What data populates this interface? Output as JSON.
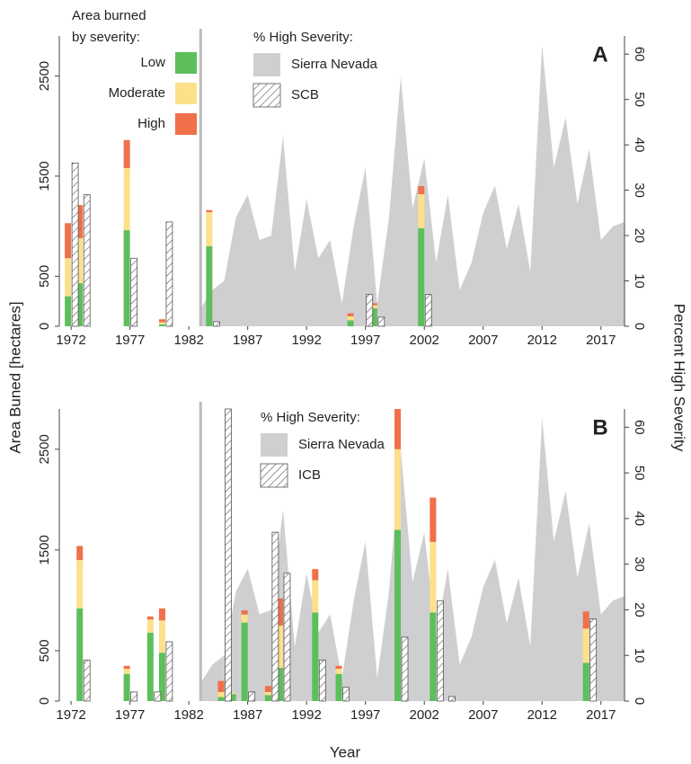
{
  "xlabel": "Year",
  "ylabel": "Area Buned [hectares]",
  "y2label": "Percent High Severity",
  "chart_data": [
    {
      "type": "bar",
      "label": "A",
      "xlim": [
        1971,
        2019
      ],
      "xticks": [
        1972,
        1977,
        1982,
        1987,
        1992,
        1997,
        2002,
        2007,
        2012,
        2017
      ],
      "ylim": [
        0,
        2900
      ],
      "yticks": [
        0,
        500,
        1500,
        2500
      ],
      "y2lim": [
        0,
        64
      ],
      "y2ticks": [
        0,
        10,
        20,
        30,
        40,
        50,
        60
      ],
      "legend_title": [
        "Area burned",
        "by severity:"
      ],
      "x": [
        1972,
        1973,
        1977,
        1980,
        1984,
        1996,
        1998,
        2002
      ],
      "series": [
        {
          "name": "Low",
          "color": "#5cbf5c",
          "values": [
            300,
            430,
            960,
            20,
            800,
            60,
            180,
            980
          ]
        },
        {
          "name": "Moderate",
          "color": "#fde08a",
          "values": [
            380,
            450,
            620,
            20,
            340,
            40,
            30,
            340
          ]
        },
        {
          "name": "High",
          "color": "#f07049",
          "values": [
            350,
            330,
            280,
            30,
            20,
            30,
            20,
            80
          ]
        }
      ],
      "pct_title": "% High Severity:",
      "area": {
        "name": "Sierra Nevada",
        "color": "#cfcfd1",
        "axis": "y2",
        "x": [
          1983,
          1984,
          1985,
          1986,
          1987,
          1988,
          1989,
          1990,
          1991,
          1992,
          1993,
          1994,
          1995,
          1996,
          1997,
          1998,
          1999,
          2000,
          2001,
          2002,
          2003,
          2004,
          2005,
          2006,
          2007,
          2008,
          2009,
          2010,
          2011,
          2012,
          2013,
          2014,
          2015,
          2016,
          2017,
          2018,
          2019
        ],
        "values": [
          4,
          8,
          10,
          24,
          29,
          19,
          20,
          42,
          12,
          28,
          15,
          19,
          5,
          22,
          35,
          5,
          24,
          55,
          26,
          37,
          14,
          29,
          8,
          14,
          25,
          31,
          17,
          27,
          12,
          62,
          35,
          46,
          27,
          39,
          19,
          22,
          23
        ]
      },
      "hatched": {
        "name": "SCB",
        "axis": "y2",
        "x": [
          1972,
          1973,
          1977,
          1980,
          1984,
          1997,
          1998,
          2002
        ],
        "values": [
          36,
          29,
          15,
          23,
          1,
          7,
          2,
          7
        ]
      }
    },
    {
      "type": "bar",
      "label": "B",
      "xlim": [
        1971,
        2019
      ],
      "xticks": [
        1972,
        1977,
        1982,
        1987,
        1992,
        1997,
        2002,
        2007,
        2012,
        2017
      ],
      "ylim": [
        0,
        2900
      ],
      "yticks": [
        0,
        500,
        1500,
        2500
      ],
      "y2lim": [
        0,
        64
      ],
      "y2ticks": [
        0,
        10,
        20,
        30,
        40,
        50,
        60
      ],
      "x": [
        1973,
        1977,
        1979,
        1980,
        1985,
        1986,
        1987,
        1989,
        1990,
        1993,
        1995,
        2000,
        2003,
        2016
      ],
      "series": [
        {
          "color": "#5cbf5c",
          "values": [
            920,
            270,
            680,
            480,
            40,
            70,
            780,
            60,
            330,
            880,
            270,
            1700,
            880,
            380
          ]
        },
        {
          "color": "#fde08a",
          "values": [
            480,
            50,
            130,
            320,
            50,
            10,
            80,
            30,
            420,
            320,
            50,
            800,
            700,
            340
          ]
        },
        {
          "color": "#f07049",
          "values": [
            140,
            30,
            30,
            120,
            110,
            0,
            40,
            60,
            270,
            110,
            30,
            400,
            440,
            170
          ]
        }
      ],
      "pct_title": "% High Severity:",
      "area": {
        "name": "Sierra Nevada",
        "color": "#cfcfd1",
        "axis": "y2",
        "x": [
          1983,
          1984,
          1985,
          1986,
          1987,
          1988,
          1989,
          1990,
          1991,
          1992,
          1993,
          1994,
          1995,
          1996,
          1997,
          1998,
          1999,
          2000,
          2001,
          2002,
          2003,
          2004,
          2005,
          2006,
          2007,
          2008,
          2009,
          2010,
          2011,
          2012,
          2013,
          2014,
          2015,
          2016,
          2017,
          2018,
          2019
        ],
        "values": [
          4,
          8,
          10,
          24,
          29,
          19,
          20,
          42,
          12,
          28,
          15,
          19,
          5,
          22,
          35,
          5,
          24,
          55,
          26,
          37,
          14,
          29,
          8,
          14,
          25,
          31,
          17,
          27,
          12,
          62,
          35,
          46,
          27,
          39,
          19,
          22,
          23
        ]
      },
      "hatched": {
        "name": "ICB",
        "axis": "y2",
        "x": [
          1973,
          1977,
          1979,
          1980,
          1985,
          1987,
          1989,
          1990,
          1993,
          1995,
          2000,
          2003,
          2004,
          2016
        ],
        "values": [
          9,
          2,
          2,
          13,
          64,
          2,
          37,
          28,
          9,
          3,
          14,
          22,
          1,
          18
        ]
      }
    }
  ]
}
